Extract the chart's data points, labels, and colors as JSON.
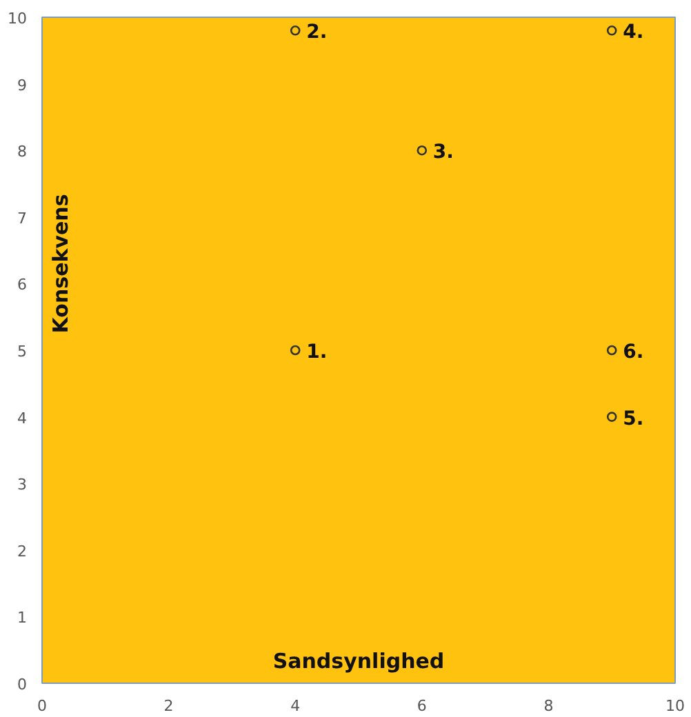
{
  "chart_data": {
    "type": "scatter",
    "xlabel": "Sandsynlighed",
    "ylabel": "Konsekvens",
    "x": [
      4,
      4,
      6,
      9,
      9,
      9
    ],
    "series": [
      {
        "color": "#333333",
        "values": [
          5,
          9.8,
          8,
          9.8,
          4,
          5
        ]
      }
    ],
    "annotations": [
      {
        "text": "1.",
        "x": 4,
        "y": 5
      },
      {
        "text": "2.",
        "x": 4,
        "y": 9.8
      },
      {
        "text": "3.",
        "x": 6,
        "y": 8
      },
      {
        "text": "4.",
        "x": 9,
        "y": 9.8
      },
      {
        "text": "5.",
        "x": 9,
        "y": 4
      },
      {
        "text": "6.",
        "x": 9,
        "y": 5
      }
    ],
    "xlim": [
      0,
      10
    ],
    "ylim": [
      0,
      10
    ],
    "xticks": [
      0,
      2,
      4,
      6,
      8,
      10
    ],
    "yticks": [
      0,
      1,
      2,
      3,
      4,
      5,
      6,
      7,
      8,
      9,
      10
    ],
    "marker": "circle"
  }
}
